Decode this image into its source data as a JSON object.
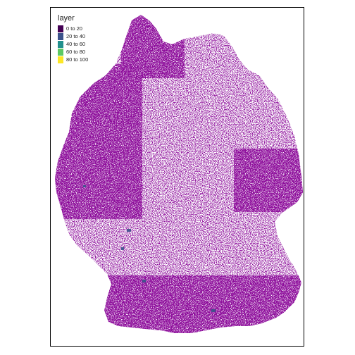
{
  "legend": {
    "title": "layer",
    "entries": [
      {
        "label": "0 to 20",
        "color": "#440154"
      },
      {
        "label": "20 to 40",
        "color": "#3b528b"
      },
      {
        "label": "40 to 60",
        "color": "#21908d"
      },
      {
        "label": "60 to 80",
        "color": "#5dc963"
      },
      {
        "label": "80 to 100",
        "color": "#fde725"
      }
    ]
  },
  "map": {
    "region": "Germany",
    "dominant_color": "#440154",
    "accent_color": "#3b528b",
    "background_color": "#ffffff"
  }
}
